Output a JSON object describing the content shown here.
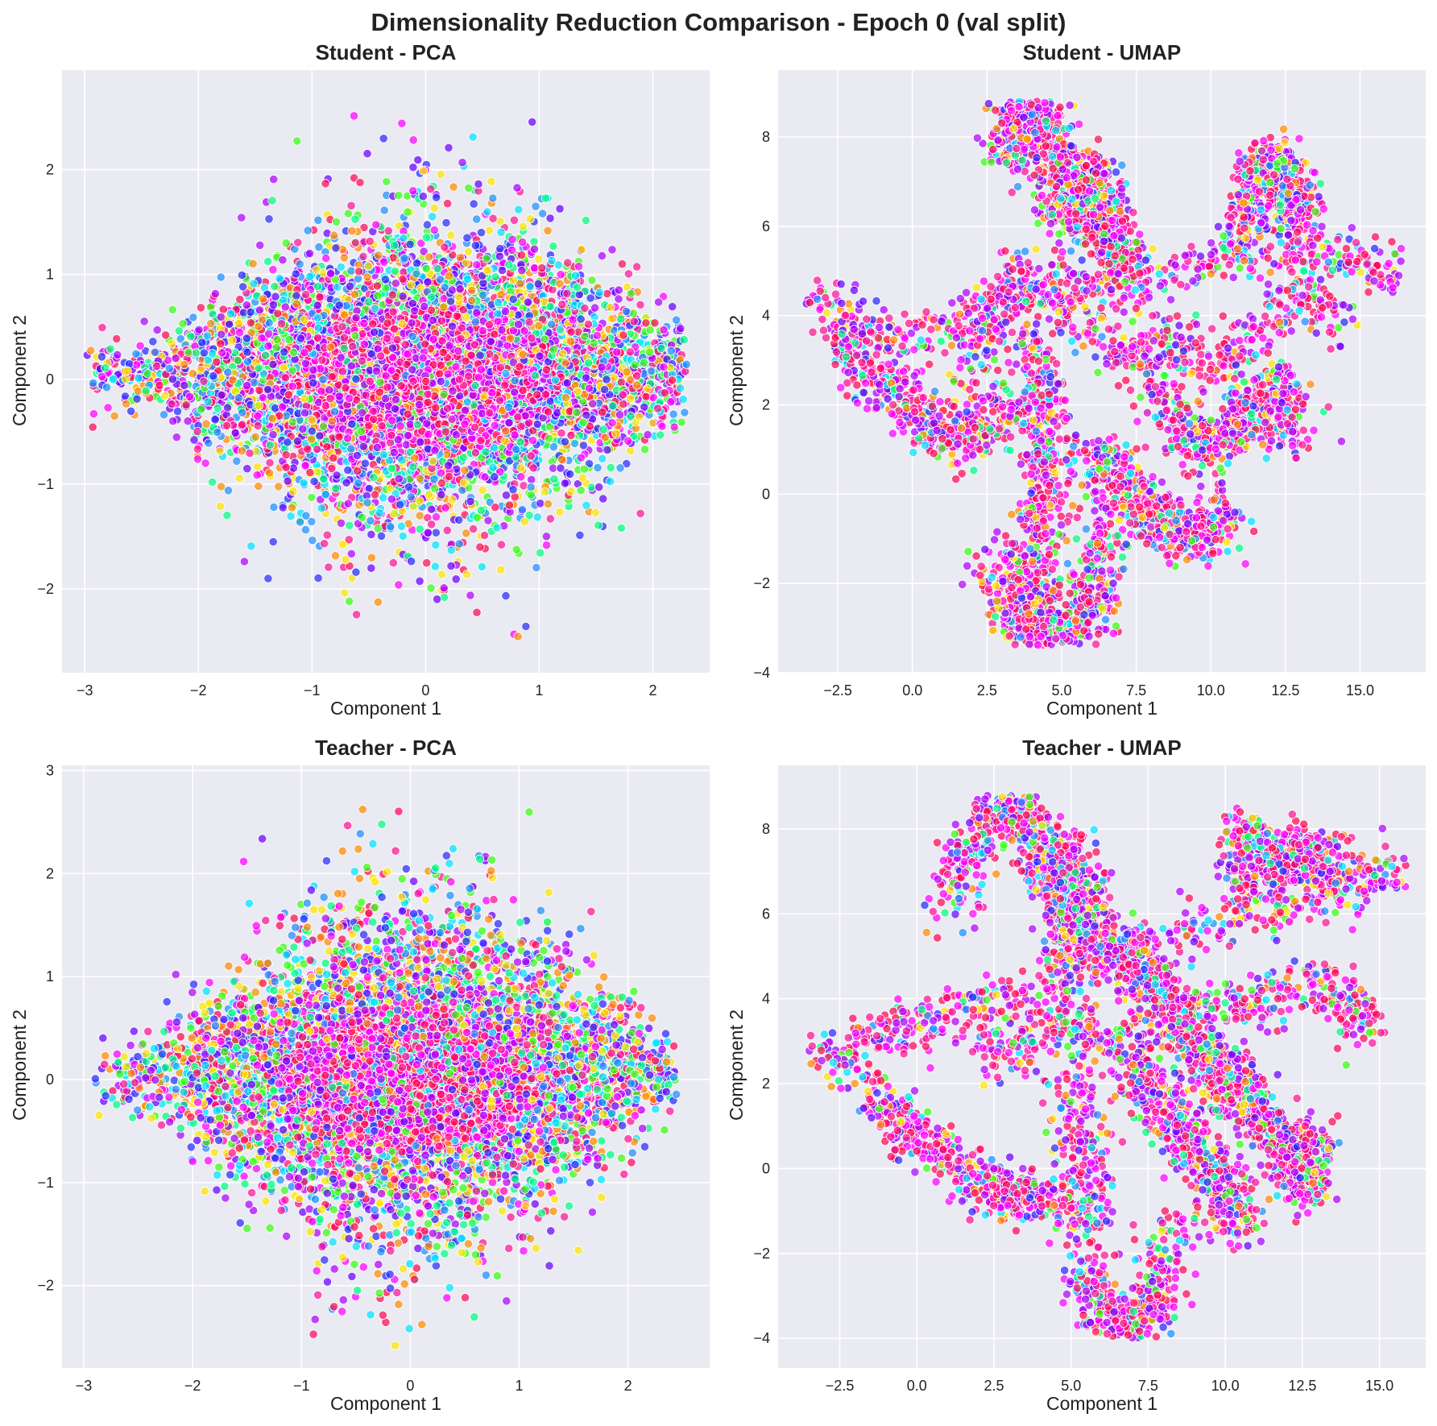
{
  "figure": {
    "suptitle": "Dimensionality Reduction Comparison - Epoch 0 (val split)"
  },
  "palette": [
    "#ff0a54",
    "#ff1493",
    "#ff00ff",
    "#b000ff",
    "#6a00ff",
    "#2a2aff",
    "#1e90ff",
    "#00e5ff",
    "#00ff7f",
    "#39ff14",
    "#ffe600",
    "#ff8c00"
  ],
  "chart_data": [
    {
      "type": "scatter",
      "title": "Student - PCA",
      "xlabel": "Component 1",
      "ylabel": "Component 2",
      "xlim": [
        -3.2,
        2.5
      ],
      "ylim": [
        -2.8,
        2.95
      ],
      "xticks": [
        -3,
        -2,
        -1,
        0,
        1,
        2
      ],
      "yticks": [
        -2,
        -1,
        0,
        1,
        2
      ],
      "tick_labels_x": [
        "−3",
        "−2",
        "−1",
        "0",
        "1",
        "2"
      ],
      "tick_labels_y": [
        "−2",
        "−1",
        "0",
        "1",
        "2"
      ],
      "grid": true,
      "legend": "none",
      "cluster": {
        "shape": "ellipse",
        "center": [
          0.0,
          0.05
        ],
        "spread": [
          1.15,
          0.55
        ],
        "extent_x": [
          -3.0,
          2.3
        ],
        "extent_y": [
          -2.55,
          2.7
        ],
        "n_points": 7000
      }
    },
    {
      "type": "scatter",
      "title": "Student - UMAP",
      "xlabel": "Component 1",
      "ylabel": "Component 2",
      "xlim": [
        -4.5,
        17.2
      ],
      "ylim": [
        -4.0,
        9.5
      ],
      "xticks": [
        -2.5,
        0.0,
        2.5,
        5.0,
        7.5,
        10.0,
        12.5,
        15.0
      ],
      "yticks": [
        -4,
        -2,
        0,
        2,
        4,
        6,
        8
      ],
      "tick_labels_x": [
        "−2.5",
        "0.0",
        "2.5",
        "5.0",
        "7.5",
        "10.0",
        "12.5",
        "15.0"
      ],
      "tick_labels_y": [
        "−4",
        "−2",
        "0",
        "2",
        "4",
        "6",
        "8"
      ],
      "grid": true,
      "legend": "none",
      "cluster": {
        "shape": "manifold",
        "extent_x": [
          -3.6,
          16.5
        ],
        "extent_y": [
          -3.4,
          8.8
        ],
        "n_points": 5200
      }
    },
    {
      "type": "scatter",
      "title": "Teacher - PCA",
      "xlabel": "Component 1",
      "ylabel": "Component 2",
      "xlim": [
        -3.2,
        2.75
      ],
      "ylim": [
        -2.8,
        3.05
      ],
      "xticks": [
        -3,
        -2,
        -1,
        0,
        1,
        2
      ],
      "yticks": [
        -2,
        -1,
        0,
        1,
        2,
        3
      ],
      "tick_labels_x": [
        "−3",
        "−2",
        "−1",
        "0",
        "1",
        "2"
      ],
      "tick_labels_y": [
        "−2",
        "−1",
        "0",
        "1",
        "2",
        "3"
      ],
      "grid": true,
      "legend": "none",
      "cluster": {
        "shape": "ellipse",
        "center": [
          0.0,
          0.05
        ],
        "spread": [
          1.1,
          0.6
        ],
        "extent_x": [
          -2.9,
          2.45
        ],
        "extent_y": [
          -2.6,
          2.75
        ],
        "n_points": 7000
      }
    },
    {
      "type": "scatter",
      "title": "Teacher - UMAP",
      "xlabel": "Component 1",
      "ylabel": "Component 2",
      "xlim": [
        -4.5,
        16.5
      ],
      "ylim": [
        -4.7,
        9.5
      ],
      "xticks": [
        -2.5,
        0.0,
        2.5,
        5.0,
        7.5,
        10.0,
        12.5,
        15.0
      ],
      "yticks": [
        -4,
        -2,
        0,
        2,
        4,
        6,
        8
      ],
      "tick_labels_x": [
        "−2.5",
        "0.0",
        "2.5",
        "5.0",
        "7.5",
        "10.0",
        "12.5",
        "15.0"
      ],
      "tick_labels_y": [
        "−4",
        "−2",
        "0",
        "2",
        "4",
        "6",
        "8"
      ],
      "grid": true,
      "legend": "none",
      "cluster": {
        "shape": "manifold",
        "extent_x": [
          -3.5,
          15.9
        ],
        "extent_y": [
          -4.0,
          8.8
        ],
        "n_points": 5200
      }
    }
  ]
}
